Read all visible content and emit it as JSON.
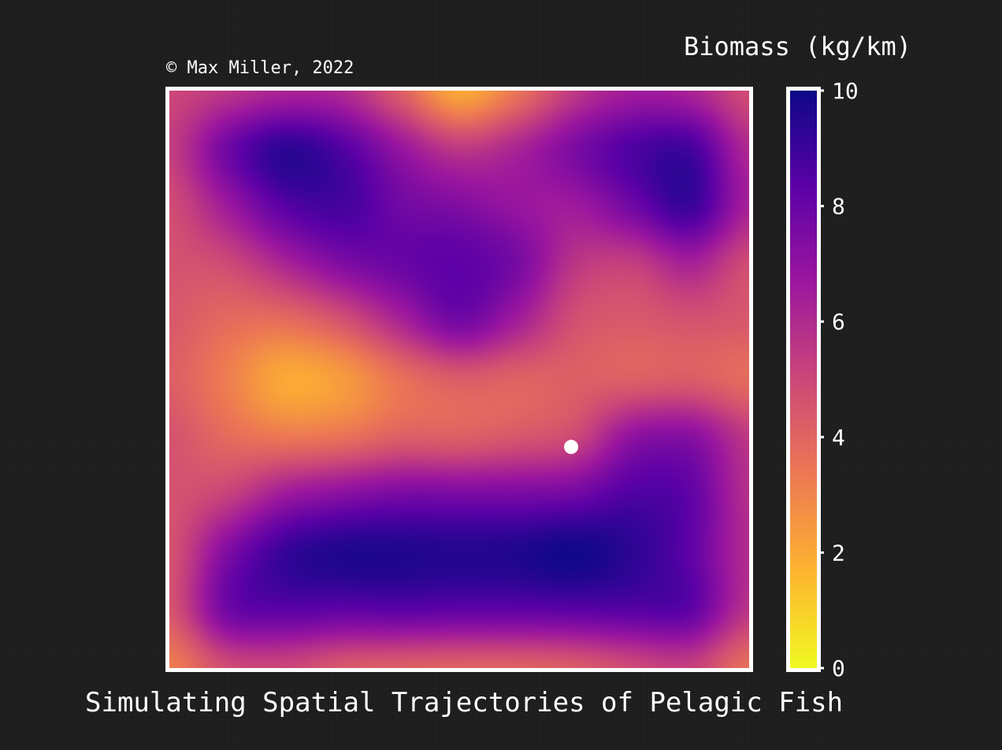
{
  "chart_data": {
    "type": "heatmap",
    "title": "Simulating Spatial Trajectories of Pelagic Fish",
    "copyright": "© Max Miller, 2022",
    "colorbar": {
      "label": "Biomass (kg/km)",
      "ticks": [
        0,
        2,
        4,
        6,
        8,
        10
      ],
      "tick_labels": [
        "0",
        "2",
        "4",
        "6",
        "8",
        "10"
      ],
      "range": [
        0,
        10
      ],
      "colormap": "plasma (reversed)",
      "color_stops": [
        "#f0f921",
        "#fdb42f",
        "#ed7953",
        "#cc4778",
        "#9c179e",
        "#5c01a6",
        "#0d0887"
      ]
    },
    "grid_note": "coarse biomass field on an 11x11 grid (row 0 = top), smoothly interpolated",
    "field": [
      [
        5.0,
        5.6,
        6.2,
        6.0,
        4.2,
        2.0,
        3.5,
        5.5,
        6.5,
        6.2,
        4.8
      ],
      [
        5.3,
        7.8,
        9.3,
        8.5,
        6.8,
        5.5,
        6.2,
        7.5,
        8.6,
        8.8,
        6.0
      ],
      [
        4.8,
        6.6,
        8.4,
        8.8,
        7.8,
        7.4,
        6.8,
        6.6,
        7.8,
        9.0,
        6.3
      ],
      [
        4.6,
        4.9,
        6.2,
        7.4,
        8.0,
        8.3,
        7.6,
        5.6,
        5.3,
        6.3,
        4.8
      ],
      [
        4.4,
        3.8,
        3.7,
        4.6,
        6.2,
        7.7,
        6.4,
        4.7,
        4.4,
        4.6,
        4.4
      ],
      [
        4.2,
        3.2,
        2.0,
        2.4,
        3.6,
        4.3,
        4.1,
        4.2,
        4.2,
        4.3,
        3.8
      ],
      [
        4.6,
        3.8,
        3.4,
        3.6,
        4.2,
        4.2,
        4.5,
        5.0,
        7.0,
        7.2,
        5.5
      ],
      [
        4.6,
        5.2,
        6.6,
        7.2,
        7.6,
        7.6,
        7.6,
        7.8,
        8.6,
        8.2,
        5.8
      ],
      [
        4.6,
        7.4,
        9.1,
        9.6,
        9.6,
        9.5,
        9.6,
        9.9,
        9.3,
        8.2,
        5.9
      ],
      [
        4.5,
        7.8,
        8.3,
        8.2,
        8.3,
        8.2,
        8.2,
        8.3,
        8.4,
        8.2,
        5.6
      ],
      [
        3.2,
        4.8,
        5.0,
        4.4,
        4.2,
        4.1,
        4.1,
        4.3,
        4.9,
        5.2,
        3.6
      ]
    ],
    "marker": {
      "x_frac": 0.693,
      "y_frac": 0.617,
      "color": "#ffffff"
    },
    "frame_color": "#ffffff",
    "background_color": "#1c1c1c"
  }
}
